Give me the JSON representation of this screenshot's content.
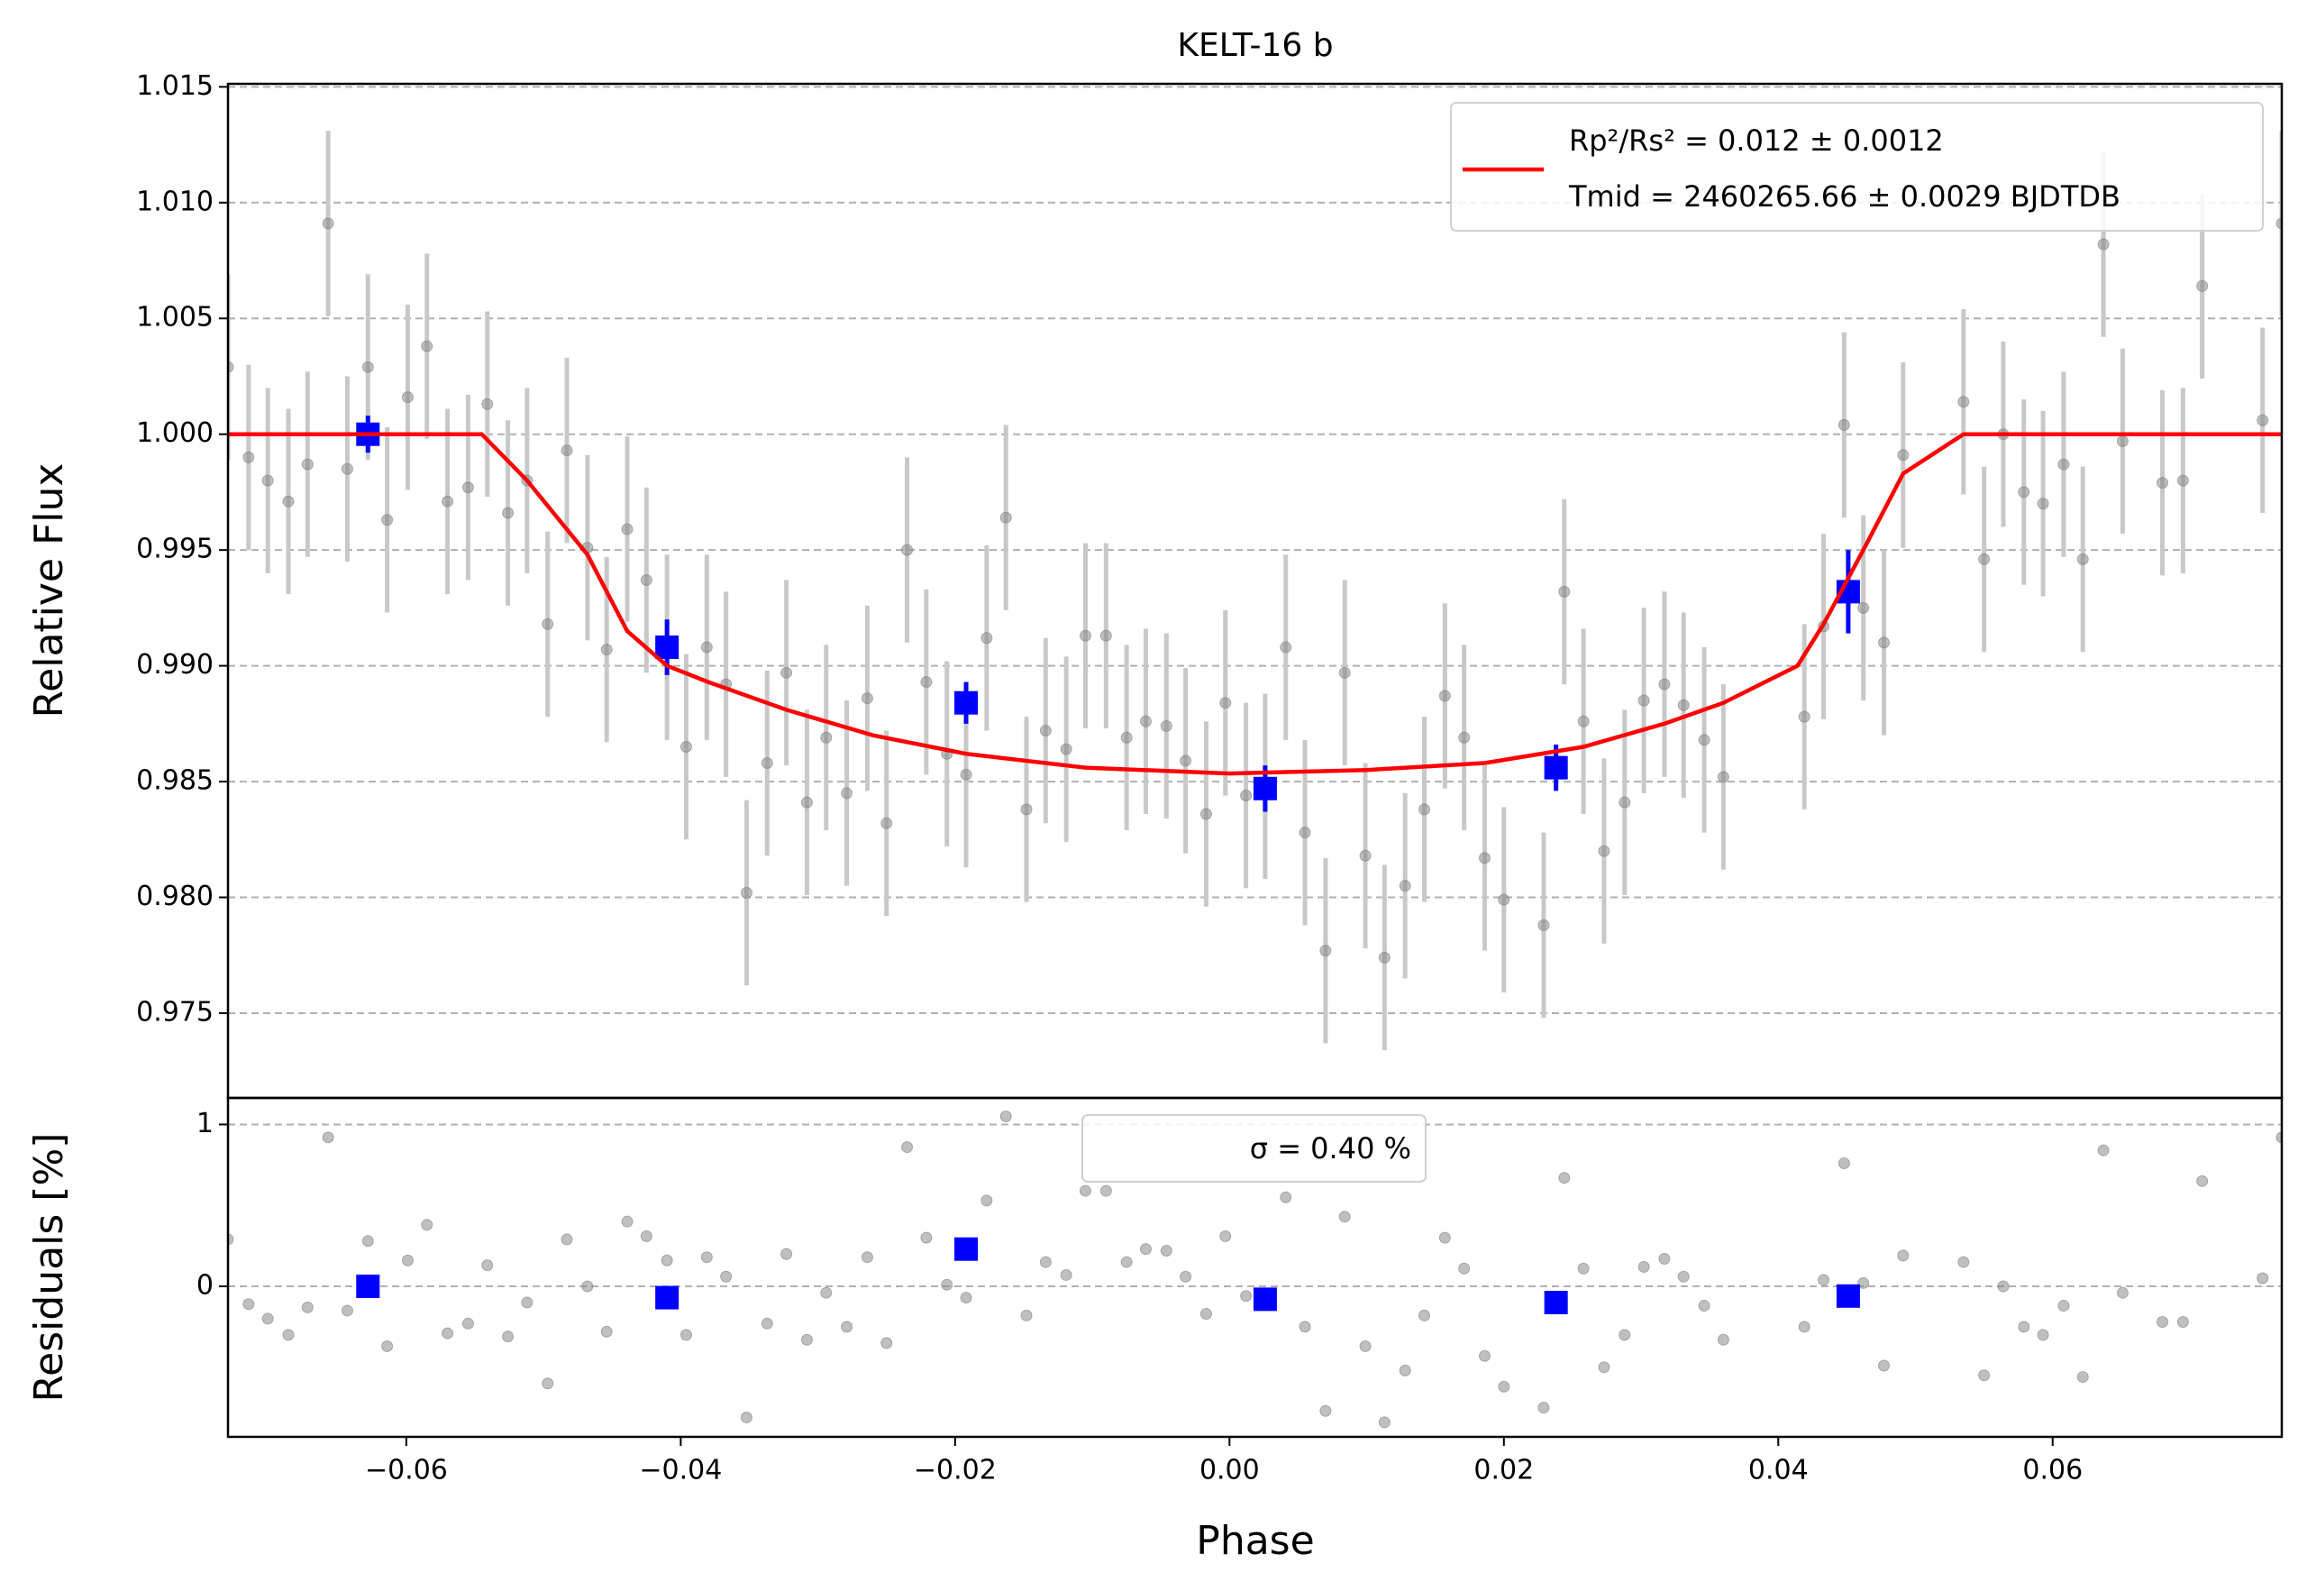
{
  "chart_data": [
    {
      "type": "scatter",
      "title": "KELT-16 b",
      "ylabel": "Relative Flux",
      "xlim": [
        -0.073,
        0.0767
      ],
      "ylim": [
        0.97134,
        1.01513
      ],
      "yticks": [
        0.975,
        {
          "value": 0.98,
          "label": "0.980"
        },
        0.985,
        {
          "value": 0.99,
          "label": "0.990"
        },
        0.995,
        {
          "value": 1.0,
          "label": "1.000"
        },
        1.005,
        {
          "value": 1.01,
          "label": "1.010"
        },
        1.015
      ],
      "grid": true,
      "legend": "upper right",
      "legend_second_line": "Tmid = 2460265.66 ± 0.0029 BJDTDB",
      "series": [
        {
          "color": "#808080",
          "marker": "circle",
          "yerr": 0.004,
          "x": [
            -0.073,
            -0.0715,
            -0.0701,
            -0.0686,
            -0.0672,
            -0.0657,
            -0.0643,
            -0.0628,
            -0.0614,
            -0.0599,
            -0.0585,
            -0.057,
            -0.0555,
            -0.0541,
            -0.0526,
            -0.0512,
            -0.0497,
            -0.0483,
            -0.0468,
            -0.0454,
            -0.0439,
            -0.0425,
            -0.041,
            -0.0396,
            -0.0381,
            -0.0367,
            -0.0352,
            -0.0337,
            -0.0323,
            -0.0308,
            -0.0294,
            -0.0279,
            -0.0264,
            -0.025,
            -0.0235,
            -0.0221,
            -0.0206,
            -0.0192,
            -0.0177,
            -0.0163,
            -0.0148,
            -0.0134,
            -0.0119,
            -0.0105,
            -0.009,
            -0.0075,
            -0.0061,
            -0.0046,
            -0.0032,
            -0.0017,
            -0.0003,
            0.0012,
            0.0026,
            0.0041,
            0.0055,
            0.007,
            0.0084,
            0.0099,
            0.0113,
            0.0128,
            0.0142,
            0.0157,
            0.0171,
            0.0186,
            0.02,
            0.0229,
            0.0244,
            0.0258,
            0.0273,
            0.0288,
            0.0302,
            0.0317,
            0.0331,
            0.0346,
            0.036,
            0.0419,
            0.0433,
            0.0448,
            0.0462,
            0.0477,
            0.0491,
            0.0535,
            0.055,
            0.0564,
            0.0579,
            0.0593,
            0.0608,
            0.0622,
            0.0637,
            0.0651,
            0.068,
            0.0695,
            0.0709,
            0.0753,
            0.0767
          ],
          "values": [
            1.0029,
            0.999,
            0.998,
            0.9971,
            0.9987,
            1.0091,
            0.9985,
            1.0029,
            0.9963,
            1.0016,
            1.0038,
            0.9971,
            0.9977,
            1.0013,
            0.9966,
            0.998,
            0.9918,
            0.9993,
            0.9951,
            0.9907,
            0.9959,
            0.9937,
            0.9908,
            0.9865,
            0.9908,
            0.9892,
            0.9802,
            0.9858,
            0.9897,
            0.9841,
            0.9869,
            0.9845,
            0.9886,
            0.9832,
            0.995,
            0.9893,
            0.9862,
            0.9853,
            0.9912,
            0.9964,
            0.9838,
            0.9872,
            0.9864,
            0.9913,
            0.9913,
            0.9869,
            0.9876,
            0.9874,
            0.9859,
            0.9836,
            0.9884,
            0.9844,
            0.9848,
            0.9908,
            0.9828,
            0.9777,
            0.9897,
            0.9818,
            0.9774,
            0.9805,
            0.9838,
            0.9887,
            0.9869,
            0.9817,
            0.9799,
            0.9788,
            0.9932,
            0.9876,
            0.982,
            0.9841,
            0.9885,
            0.9892,
            0.9883,
            0.9868,
            0.9852,
            0.9878,
            0.9917,
            1.0004,
            0.9925,
            0.991,
            0.9991,
            1.0014,
            0.9946,
            1.0,
            0.9975,
            0.997,
            0.9987,
            0.9946,
            1.0082,
            0.9997,
            0.9979,
            0.998,
            1.0064,
            1.0006,
            1.0091
          ]
        },
        {
          "color": "#0000ff",
          "marker": "square",
          "x": [
            -0.0628,
            -0.041,
            -0.0192,
            0.0026,
            0.0238,
            0.0451
          ],
          "values": [
            1.0,
            0.9908,
            0.9884,
            0.9847,
            0.9856,
            0.9932
          ],
          "yerr": [
            0.0008,
            0.0012,
            0.0009,
            0.001,
            0.001,
            0.0018
          ]
        },
        {
          "type": "line",
          "color": "#ff0000",
          "name": "Rp²/Rs² = 0.012 ± 0.0012",
          "x": [
            -0.073,
            -0.0545,
            -0.0512,
            -0.0468,
            -0.0439,
            -0.041,
            -0.038,
            -0.0323,
            -0.026,
            -0.0192,
            -0.0105,
            0,
            0.01,
            0.0186,
            0.0258,
            0.0317,
            0.036,
            0.0414,
            0.0433,
            0.0462,
            0.0491,
            0.0535,
            0.0767
          ],
          "values": [
            1.0,
            1.0,
            0.998,
            0.9948,
            0.9915,
            0.99,
            0.9893,
            0.9881,
            0.987,
            0.9862,
            0.9856,
            0.98535,
            0.9855,
            0.9858,
            0.9865,
            0.9875,
            0.9884,
            0.99,
            0.9918,
            0.995,
            0.9983,
            1.0,
            1.0
          ]
        }
      ]
    },
    {
      "type": "scatter",
      "xlabel": "Phase",
      "ylabel": "Residuals [%]",
      "xlim": [
        -0.073,
        0.0767
      ],
      "ylim": [
        -0.93,
        1.164
      ],
      "xticks": [
        {
          "value": -0.06,
          "label": "−0.06"
        },
        {
          "value": -0.04,
          "label": "−0.04"
        },
        {
          "value": -0.02,
          "label": "−0.02"
        },
        {
          "value": 0,
          "label": "0.00"
        },
        0.02,
        0.04,
        0.06
      ],
      "yticks": [
        0,
        1
      ],
      "grid": true,
      "legend": "upper center",
      "legend_text": "σ = 0.40 %",
      "series": [
        {
          "color": "#808080",
          "marker": "circle",
          "x": [
            -0.073,
            -0.0715,
            -0.0701,
            -0.0686,
            -0.0672,
            -0.0657,
            -0.0643,
            -0.0628,
            -0.0614,
            -0.0599,
            -0.0585,
            -0.057,
            -0.0555,
            -0.0541,
            -0.0526,
            -0.0512,
            -0.0497,
            -0.0483,
            -0.0468,
            -0.0454,
            -0.0439,
            -0.0425,
            -0.041,
            -0.0396,
            -0.0381,
            -0.0367,
            -0.0352,
            -0.0337,
            -0.0323,
            -0.0308,
            -0.0294,
            -0.0279,
            -0.0264,
            -0.025,
            -0.0235,
            -0.0221,
            -0.0206,
            -0.0192,
            -0.0177,
            -0.0163,
            -0.0148,
            -0.0134,
            -0.0119,
            -0.0105,
            -0.009,
            -0.0075,
            -0.0061,
            -0.0046,
            -0.0032,
            -0.0017,
            -0.0003,
            0.0012,
            0.0026,
            0.0041,
            0.0055,
            0.007,
            0.0084,
            0.0099,
            0.0113,
            0.0128,
            0.0142,
            0.0157,
            0.0171,
            0.0186,
            0.02,
            0.0229,
            0.0244,
            0.0258,
            0.0273,
            0.0288,
            0.0302,
            0.0317,
            0.0331,
            0.0346,
            0.036,
            0.0419,
            0.0433,
            0.0448,
            0.0462,
            0.0477,
            0.0491,
            0.0535,
            0.055,
            0.0564,
            0.0579,
            0.0593,
            0.0608,
            0.0622,
            0.0637,
            0.0651,
            0.068,
            0.0695,
            0.0709,
            0.0753,
            0.0767
          ],
          "values": [
            0.29,
            -0.11,
            -0.2,
            -0.3,
            -0.13,
            0.92,
            -0.15,
            0.28,
            -0.37,
            0.16,
            0.38,
            -0.29,
            -0.23,
            0.13,
            -0.31,
            -0.1,
            -0.6,
            0.29,
            0.0,
            -0.28,
            0.4,
            0.31,
            0.16,
            -0.3,
            0.18,
            0.06,
            -0.81,
            -0.23,
            0.2,
            -0.33,
            -0.04,
            -0.25,
            0.18,
            -0.35,
            0.86,
            0.3,
            0.01,
            -0.07,
            0.53,
            1.05,
            -0.18,
            0.15,
            0.07,
            0.59,
            0.59,
            0.15,
            0.23,
            0.22,
            0.06,
            -0.17,
            0.31,
            -0.06,
            -0.05,
            0.55,
            -0.25,
            -0.77,
            0.43,
            -0.37,
            -0.84,
            -0.52,
            -0.18,
            0.3,
            0.11,
            -0.43,
            -0.62,
            -0.75,
            0.67,
            0.11,
            -0.5,
            -0.3,
            0.12,
            0.17,
            0.06,
            -0.12,
            -0.33,
            -0.25,
            0.04,
            0.76,
            0.02,
            -0.49,
            0.19,
            0.15,
            -0.55,
            0.0,
            -0.25,
            -0.3,
            -0.12,
            -0.56,
            0.84,
            -0.04,
            -0.22,
            -0.22,
            0.65,
            0.05,
            0.92
          ]
        },
        {
          "color": "#0000ff",
          "marker": "square",
          "x": [
            -0.0628,
            -0.041,
            -0.0192,
            0.0026,
            0.0238,
            0.0451
          ],
          "values": [
            0.0,
            -0.07,
            0.23,
            -0.08,
            -0.1,
            -0.06
          ]
        }
      ]
    }
  ]
}
